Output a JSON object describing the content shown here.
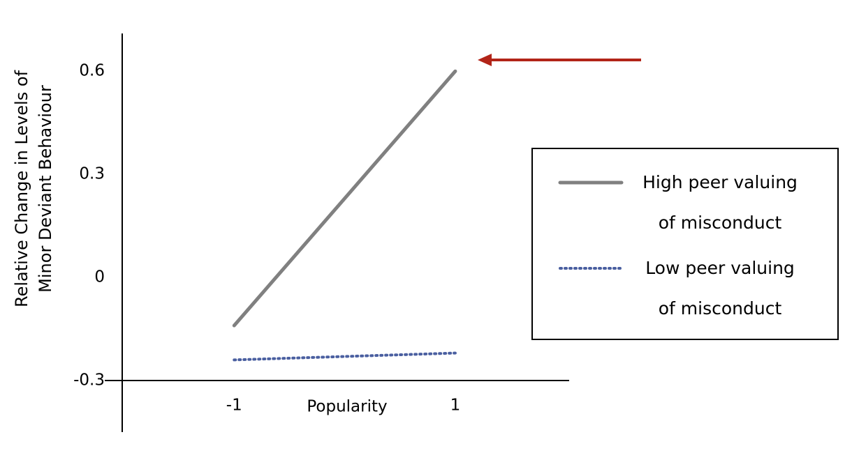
{
  "chart_data": {
    "type": "line",
    "y_label": "Relative Change in Levels of Minor Deviant Behaviour",
    "x_label": "Popularity",
    "x": [
      -1,
      1
    ],
    "series": [
      {
        "name": "High peer valuing of misconduct",
        "color": "#808080",
        "linestyle": "solid",
        "values": [
          -0.14,
          0.6
        ]
      },
      {
        "name": "Low peer valuing of misconduct",
        "color": "#4a5fa0",
        "linestyle": "dotted",
        "values": [
          -0.24,
          -0.22
        ]
      }
    ],
    "xlim": [
      -2.17,
      2.03
    ],
    "xticks": [
      -1,
      1
    ],
    "ylim": [
      -0.45,
      0.71
    ],
    "yticks": [
      -0.3,
      0,
      0.3,
      0.6
    ],
    "grid": false,
    "legend_position": "right"
  }
}
